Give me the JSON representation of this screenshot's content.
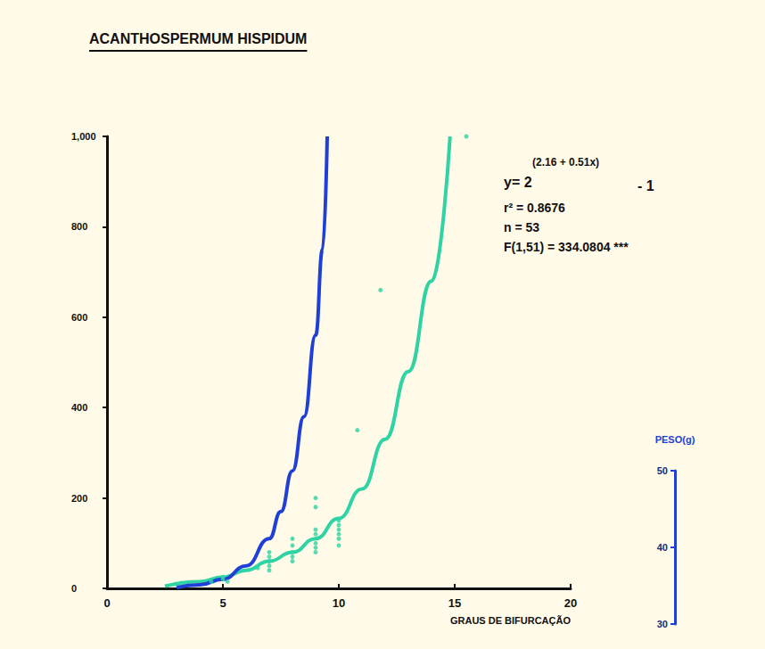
{
  "chart_data": {
    "type": "scatter",
    "title": "ACANTHOSPERMUM HISPIDUM",
    "xlabel": "GRAUS DE BIFURCAÇÃO",
    "y2label": "PESO(g)",
    "annotations": [
      "y= 2",
      "(2.16 + 0.51x)",
      "- 1",
      "r² = 0.8676",
      "n = 53",
      "F(1,51) = 334.0804 ***"
    ],
    "xlim": [
      0,
      20
    ],
    "xticks": [
      0,
      5,
      10,
      15,
      20
    ],
    "ylim": [
      0,
      1000
    ],
    "yticks": [
      0,
      200,
      400,
      600,
      800,
      1000
    ],
    "y2lim": [
      30,
      50
    ],
    "y2ticks": [
      30,
      40,
      50
    ],
    "grid": false,
    "series": [
      {
        "type": "scatter",
        "color": "#2fd3a4",
        "marker": "circle",
        "x": [
          3,
          3.2,
          4.5,
          5,
          5,
          5.2,
          6.5,
          7,
          7,
          7,
          7,
          7,
          8,
          8,
          8,
          8,
          8,
          9,
          9,
          9,
          9,
          9,
          9,
          9,
          10,
          10,
          10,
          10,
          10,
          10,
          10.8,
          11.8,
          15.5
        ],
        "values": [
          10,
          12,
          15,
          20,
          25,
          15,
          45,
          50,
          60,
          70,
          80,
          40,
          60,
          80,
          95,
          110,
          70,
          90,
          100,
          120,
          130,
          180,
          200,
          80,
          95,
          110,
          130,
          150,
          140,
          120,
          350,
          660,
          1000
        ]
      },
      {
        "type": "line",
        "color": "#2fd3a4",
        "marker": "none",
        "line_style": "solid",
        "x": [
          2.5,
          4,
          5,
          6,
          7,
          8,
          9,
          10,
          11,
          12,
          13,
          14,
          14.8
        ],
        "values": [
          5,
          15,
          25,
          40,
          60,
          80,
          110,
          155,
          220,
          330,
          480,
          680,
          1000
        ]
      },
      {
        "type": "line",
        "color": "#1f3fd6",
        "marker": "none",
        "line_style": "solid",
        "x": [
          3,
          4,
          5,
          6,
          7,
          7.5,
          8,
          8.5,
          9,
          9.3,
          9.5
        ],
        "values": [
          2,
          8,
          20,
          50,
          110,
          170,
          260,
          380,
          560,
          750,
          1000
        ]
      }
    ]
  }
}
